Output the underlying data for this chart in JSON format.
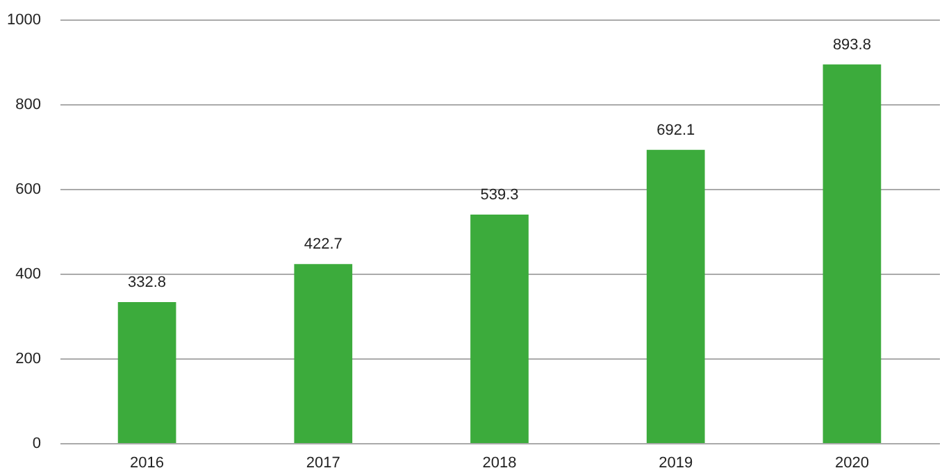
{
  "chart_data": {
    "type": "bar",
    "categories": [
      "2016",
      "2017",
      "2018",
      "2019",
      "2020"
    ],
    "values": [
      332.8,
      422.7,
      539.3,
      692.1,
      893.8
    ],
    "color": "#3cab3c",
    "ylim": [
      0,
      1000
    ],
    "yticks": [
      0,
      200,
      400,
      600,
      800,
      1000
    ],
    "grid": "y",
    "data_labels": true
  }
}
